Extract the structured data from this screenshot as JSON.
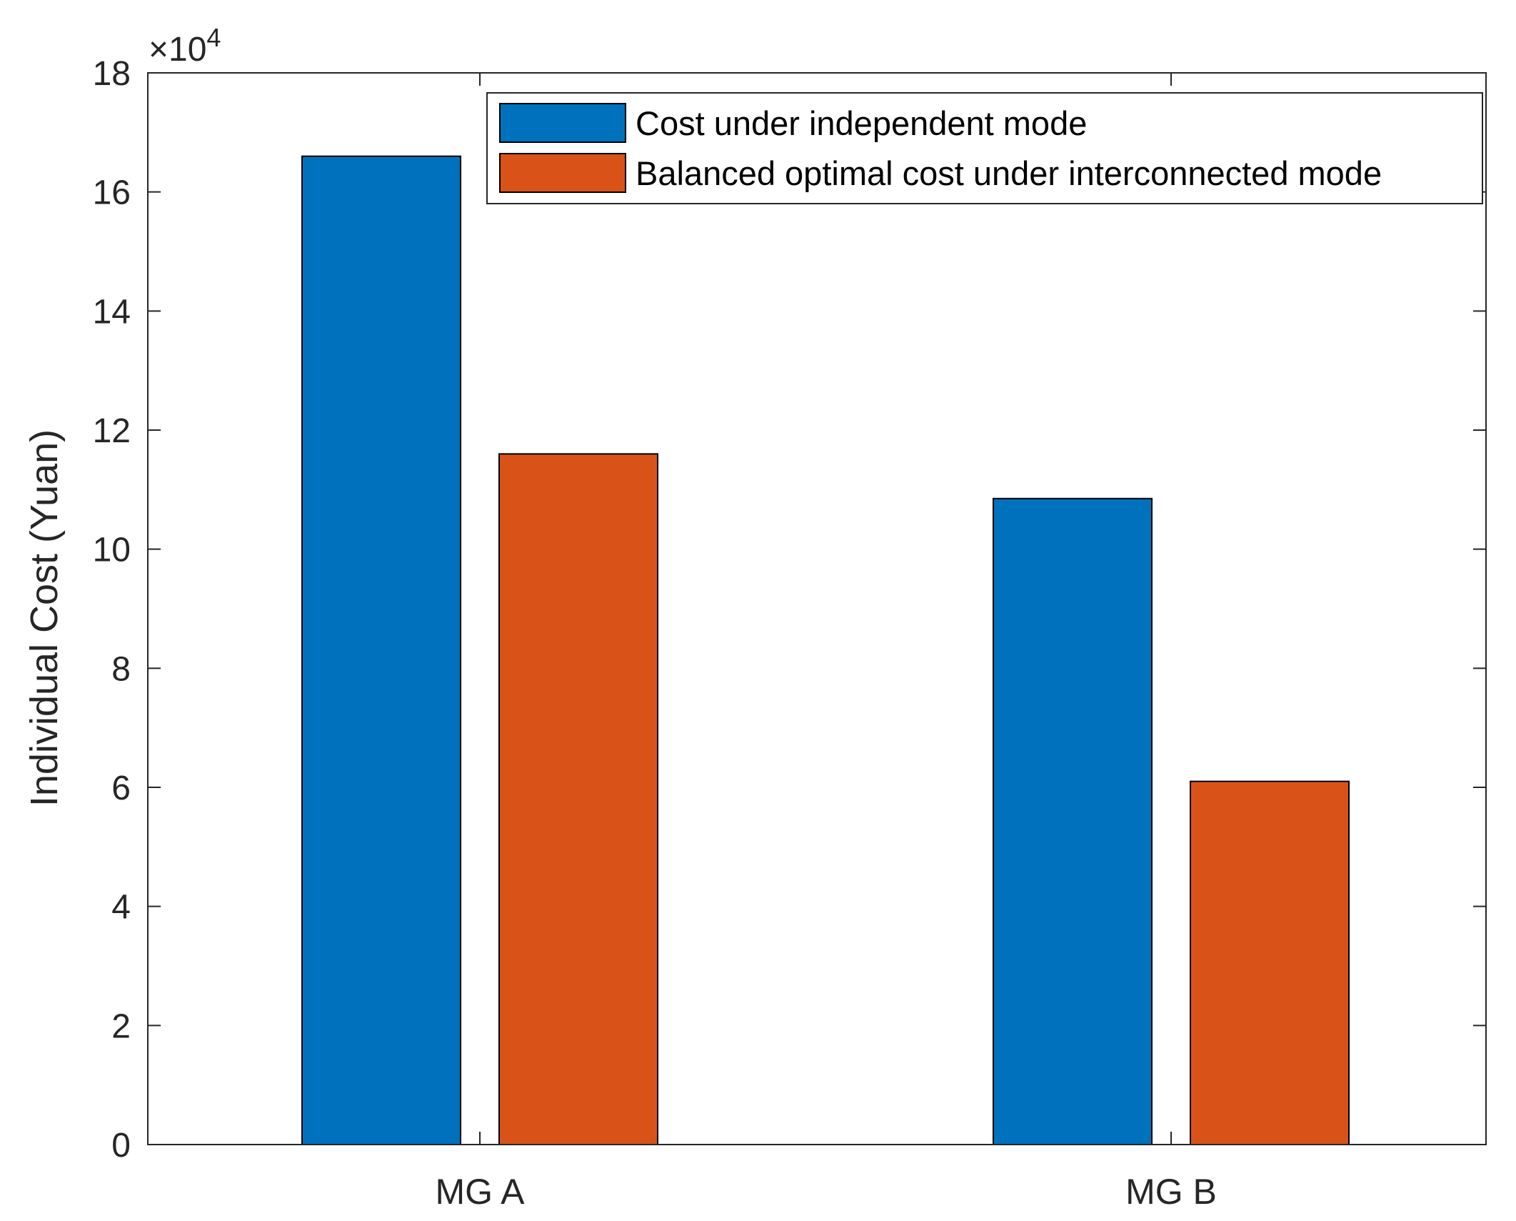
{
  "chart_data": {
    "type": "bar",
    "title": "",
    "xlabel": "",
    "ylabel": "Individual Cost (Yuan)",
    "categories": [
      "MG A",
      "MG B"
    ],
    "series": [
      {
        "name": "Cost under independent mode",
        "values": [
          166000,
          108500
        ],
        "color": "#0072BD"
      },
      {
        "name": "Balanced optimal cost under interconnected mode",
        "values": [
          116000,
          61000
        ],
        "color": "#D95319"
      }
    ],
    "ylim": [
      0,
      180000
    ],
    "yticks": [
      0,
      20000,
      40000,
      60000,
      80000,
      100000,
      120000,
      140000,
      160000,
      180000
    ],
    "ytick_labels": [
      "0",
      "2",
      "4",
      "6",
      "8",
      "10",
      "12",
      "14",
      "16",
      "18"
    ],
    "y_exponent_base": "×10",
    "y_exponent_power": "4",
    "grid": false,
    "legend": {
      "placement": "top-right"
    }
  }
}
